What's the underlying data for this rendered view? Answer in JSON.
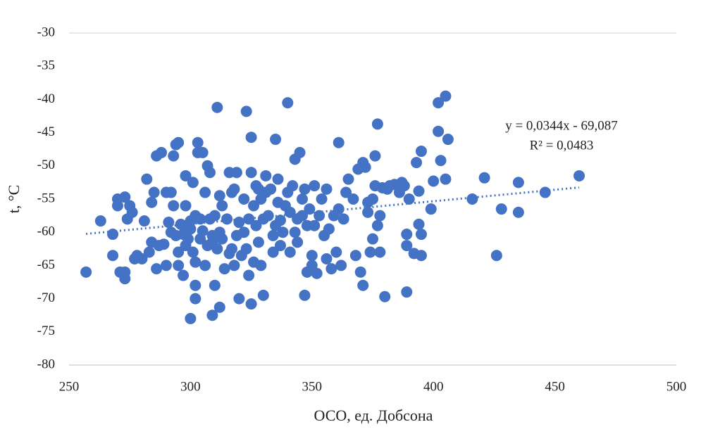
{
  "chart_data": {
    "type": "scatter",
    "x_label": "ОСО, ед. Добсона",
    "y_label": "t, °C",
    "annotation": [
      "y = 0,0344x - 69,087",
      "R² = 0,0483"
    ],
    "xlim": [
      250,
      500
    ],
    "xticks": [
      250,
      300,
      350,
      400,
      450,
      500
    ],
    "ylim": [
      -80,
      -30
    ],
    "yticks": [
      -30,
      -35,
      -40,
      -45,
      -50,
      -55,
      -60,
      -65,
      -70,
      -75,
      -80
    ],
    "series": [
      {
        "color": "#4472c4",
        "x": [
          257,
          263,
          268,
          268,
          270,
          270,
          271,
          273,
          273,
          273,
          274,
          275,
          276,
          277,
          278,
          278,
          280,
          281,
          282,
          283,
          284,
          284,
          285,
          286,
          286,
          287,
          288,
          289,
          290,
          290,
          291,
          292,
          292,
          293,
          293,
          294,
          294,
          295,
          295,
          295,
          296,
          297,
          297,
          297,
          298,
          298,
          298,
          299,
          300,
          300,
          300,
          301,
          301,
          302,
          302,
          302,
          302,
          303,
          303,
          304,
          304,
          305,
          305,
          306,
          306,
          307,
          307,
          308,
          308,
          309,
          309,
          309,
          310,
          310,
          311,
          311,
          312,
          312,
          312,
          313,
          313,
          314,
          315,
          316,
          316,
          317,
          317,
          318,
          318,
          319,
          319,
          320,
          320,
          321,
          322,
          322,
          323,
          323,
          324,
          324,
          325,
          325,
          325,
          326,
          326,
          327,
          327,
          328,
          328,
          329,
          329,
          330,
          330,
          331,
          331,
          332,
          333,
          334,
          334,
          335,
          335,
          336,
          336,
          337,
          337,
          338,
          339,
          340,
          340,
          341,
          341,
          342,
          343,
          343,
          344,
          344,
          345,
          346,
          346,
          347,
          347,
          348,
          348,
          349,
          350,
          350,
          351,
          351,
          352,
          353,
          354,
          355,
          356,
          356,
          357,
          358,
          359,
          360,
          361,
          361,
          362,
          363,
          364,
          365,
          367,
          368,
          369,
          370,
          371,
          371,
          372,
          373,
          373,
          374,
          375,
          375,
          376,
          376,
          377,
          377,
          378,
          378,
          379,
          380,
          381,
          382,
          384,
          386,
          387,
          388,
          389,
          389,
          389,
          390,
          392,
          393,
          394,
          394,
          395,
          395,
          395,
          399,
          400,
          402,
          402,
          403,
          405,
          405,
          406,
          416,
          421,
          426,
          428,
          435,
          435,
          446,
          460
        ],
        "values": [
          -66,
          -58.3,
          -60.3,
          -63.5,
          -55,
          -56,
          -66,
          -54.7,
          -67,
          -66,
          -58,
          -56,
          -57,
          -64,
          -63.8,
          -63.5,
          -64,
          -58.3,
          -52,
          -63,
          -61.5,
          -55.5,
          -54,
          -48.5,
          -65.5,
          -62,
          -48,
          -61.8,
          -54,
          -65,
          -58.5,
          -60,
          -54,
          -56,
          -48.5,
          -46.8,
          -60.5,
          -46.5,
          -65,
          -63,
          -58.8,
          -60.3,
          -66.5,
          -59,
          -56,
          -51.5,
          -62,
          -61,
          -73,
          -58.3,
          -59.5,
          -52.5,
          -63,
          -57.5,
          -68,
          -70,
          -64.5,
          -48,
          -46.5,
          -58,
          -61,
          -59.8,
          -48,
          -54,
          -65,
          -62,
          -50,
          -51,
          -58,
          -72.5,
          -60.5,
          -61.5,
          -68,
          -57.5,
          -62.5,
          -41.2,
          -60,
          -54.5,
          -71.3,
          -56,
          -61,
          -65.5,
          -58,
          -51,
          -63.2,
          -62.5,
          -54,
          -53.5,
          -65,
          -51,
          -60.5,
          -58.5,
          -70,
          -63.5,
          -55,
          -60,
          -41.8,
          -62.5,
          -66.5,
          -58,
          -51,
          -45.7,
          -70.8,
          -56,
          -64.5,
          -59,
          -53,
          -61.5,
          -53.5,
          -65,
          -55,
          -69.5,
          -58,
          -51.5,
          -54,
          -57.5,
          -53.5,
          -60.5,
          -63,
          -46,
          -59,
          -55.5,
          -52,
          -58.2,
          -62,
          -60,
          -56,
          -40.5,
          -54,
          -57,
          -63,
          -53,
          -49,
          -60,
          -58,
          -61.5,
          -48,
          -57.5,
          -55,
          -69.5,
          -53.5,
          -59,
          -66,
          -56.5,
          -63.5,
          -65,
          -53,
          -59,
          -66.2,
          -57.5,
          -55,
          -60.5,
          -53.5,
          -64,
          -59.5,
          -65.5,
          -57.5,
          -63,
          -46.5,
          -56.5,
          -65,
          -58,
          -54,
          -52,
          -55,
          -63.5,
          -50.5,
          -66,
          -49.5,
          -68,
          -50.2,
          -55.5,
          -57,
          -63,
          -55,
          -61,
          -48.5,
          -53,
          -43.7,
          -59,
          -57.5,
          -63,
          -53.3,
          -69.7,
          -53.5,
          -53,
          -52.8,
          -54,
          -52.5,
          -53,
          -60.3,
          -62,
          -69,
          -55,
          -63.2,
          -49.5,
          -53.8,
          -58.8,
          -60.3,
          -63.5,
          -47.8,
          -56.5,
          -52.3,
          -40.5,
          -44.8,
          -49.2,
          -39.5,
          -52,
          -46,
          -55,
          -51.8,
          -63.5,
          -56.5,
          -52.5,
          -57,
          -54,
          -51.5
        ]
      }
    ],
    "trendline": {
      "x": [
        257,
        460
      ],
      "y": [
        -60.25,
        -53.26
      ],
      "color": "#4472c4",
      "style": "dotted"
    }
  }
}
